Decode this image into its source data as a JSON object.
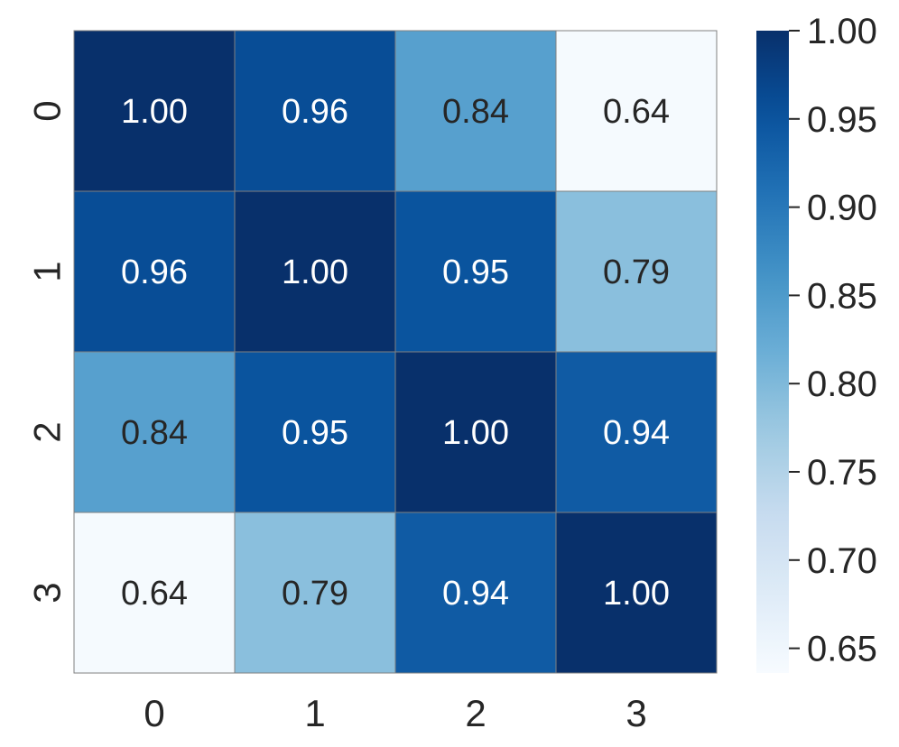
{
  "chart_data": {
    "type": "heatmap",
    "title": "",
    "xlabel": "",
    "ylabel": "",
    "x_categories": [
      "0",
      "1",
      "2",
      "3"
    ],
    "y_categories": [
      "0",
      "1",
      "2",
      "3"
    ],
    "values": [
      [
        1.0,
        0.96,
        0.84,
        0.64
      ],
      [
        0.96,
        1.0,
        0.95,
        0.79
      ],
      [
        0.84,
        0.95,
        1.0,
        0.94
      ],
      [
        0.64,
        0.79,
        0.94,
        1.0
      ]
    ],
    "annotations": [
      [
        "1.00",
        "0.96",
        "0.84",
        "0.64"
      ],
      [
        "0.96",
        "1.00",
        "0.95",
        "0.79"
      ],
      [
        "0.84",
        "0.95",
        "1.00",
        "0.94"
      ],
      [
        "0.64",
        "0.79",
        "0.94",
        "1.00"
      ]
    ],
    "colormap": "Blues",
    "vmin": 0.636,
    "vmax": 1.0,
    "colorbar": {
      "ticks": [
        0.65,
        0.7,
        0.75,
        0.8,
        0.85,
        0.9,
        0.95,
        1.0
      ],
      "tick_labels": [
        "0.65",
        "0.70",
        "0.75",
        "0.80",
        "0.85",
        "0.90",
        "0.95",
        "1.00"
      ]
    },
    "cell_border_color": "#808080",
    "text_dark": "#262626",
    "text_light": "#ffffff"
  }
}
